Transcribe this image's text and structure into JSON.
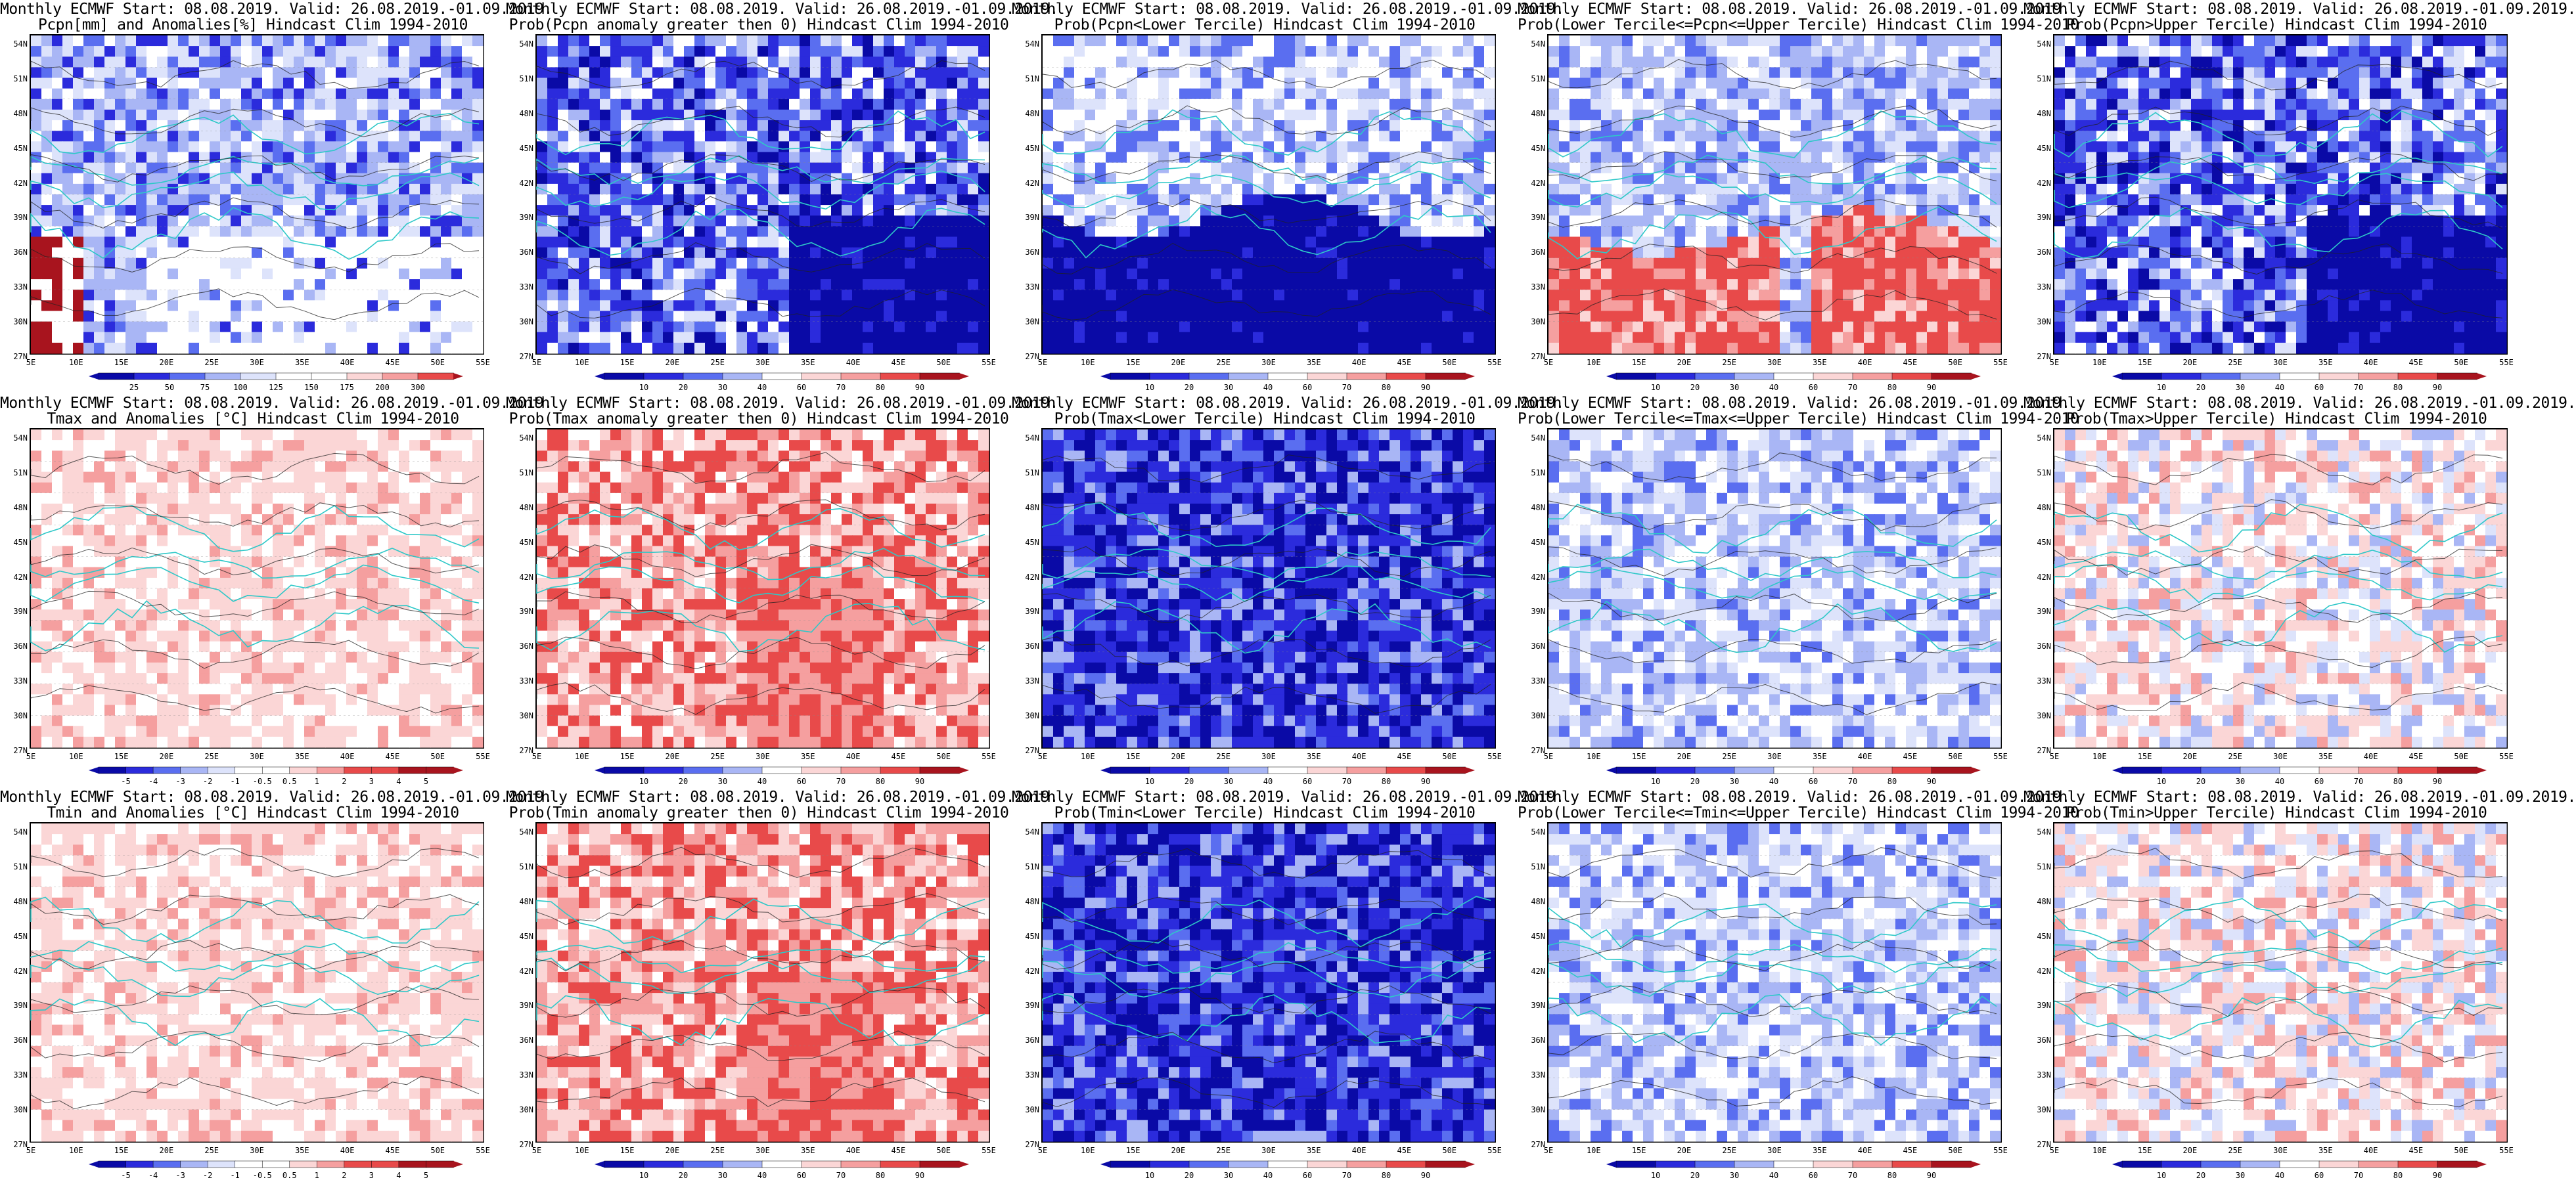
{
  "lon_labels": [
    "5E",
    "10E",
    "15E",
    "20E",
    "25E",
    "30E",
    "35E",
    "40E",
    "45E",
    "50E",
    "55E"
  ],
  "lat_labels": [
    "54N",
    "51N",
    "48N",
    "45N",
    "42N",
    "39N",
    "36N",
    "33N",
    "30N",
    "27N"
  ],
  "colors": {
    "deep_blue": "#0a0aa6",
    "blue": "#2b2bdc",
    "mid_blue": "#5a6ef0",
    "light_blue": "#a9b6f5",
    "pale_blue": "#dde3fb",
    "white": "#ffffff",
    "pale_red": "#fbd6d6",
    "light_red": "#f59f9f",
    "red": "#e84a4a",
    "dark_red": "#a8141e",
    "coast": "#2ec8c8",
    "contour": "#222222"
  },
  "panels": [
    {
      "title1": "Monthly ECMWF Start: 08.08.2019. Valid: 26.08.2019.-01.09.2019.",
      "title2": "Pcpn[mm] and Anomalies[%] Hindcast Clim 1994-2010",
      "style": "pcpn",
      "cbar": [
        "25",
        "50",
        "75",
        "100",
        "125",
        "150",
        "175",
        "200",
        "300"
      ]
    },
    {
      "title1": "Monthly ECMWF Start: 08.08.2019. Valid: 26.08.2019.-01.09.2019.",
      "title2": "Prob(Pcpn anomaly greater then 0) Hindcast Clim 1994-2010",
      "style": "blue",
      "cbar": [
        "10",
        "20",
        "30",
        "40",
        "60",
        "70",
        "80",
        "90"
      ]
    },
    {
      "title1": "Monthly ECMWF Start: 08.08.2019. Valid: 26.08.2019.-01.09.2019.",
      "title2": "Prob(Pcpn<Lower Tercile) Hindcast Clim 1994-2010",
      "style": "deepblue_south",
      "cbar": [
        "10",
        "20",
        "30",
        "40",
        "60",
        "70",
        "80",
        "90"
      ]
    },
    {
      "title1": "Monthly ECMWF Start: 08.08.2019. Valid: 26.08.2019.-01.09.2019.",
      "title2": "Prob(Lower Tercile<=Pcpn<=Upper Tercile) Hindcast Clim 1994-2010",
      "style": "red_south",
      "cbar": [
        "10",
        "20",
        "30",
        "40",
        "60",
        "70",
        "80",
        "90"
      ]
    },
    {
      "title1": "Monthly ECMWF Start: 08.08.2019. Valid: 26.08.2019.-01.09.2019.",
      "title2": "Prob(Pcpn>Upper Tercile) Hindcast Clim 1994-2010",
      "style": "blue",
      "cbar": [
        "10",
        "20",
        "30",
        "40",
        "60",
        "70",
        "80",
        "90"
      ]
    },
    {
      "title1": "Monthly ECMWF Start: 08.08.2019. Valid: 26.08.2019.-01.09.2019.",
      "title2": "Tmax and Anomalies [°C] Hindcast Clim 1994-2010",
      "style": "lightred",
      "cbar": [
        "-5",
        "-4",
        "-3",
        "-2",
        "-1",
        "-0.5",
        "0.5",
        "1",
        "2",
        "3",
        "4",
        "5"
      ]
    },
    {
      "title1": "Monthly ECMWF Start: 08.08.2019. Valid: 26.08.2019.-01.09.2019.",
      "title2": "Prob(Tmax anomaly greater then 0) Hindcast Clim 1994-2010",
      "style": "red",
      "cbar": [
        "10",
        "20",
        "30",
        "40",
        "60",
        "70",
        "80",
        "90"
      ]
    },
    {
      "title1": "Monthly ECMWF Start: 08.08.2019. Valid: 26.08.2019.-01.09.2019.",
      "title2": "Prob(Tmax<Lower Tercile) Hindcast Clim 1994-2010",
      "style": "deepblue",
      "cbar": [
        "10",
        "20",
        "30",
        "40",
        "60",
        "70",
        "80",
        "90"
      ]
    },
    {
      "title1": "Monthly ECMWF Start: 08.08.2019. Valid: 26.08.2019.-01.09.2019.",
      "title2": "Prob(Lower Tercile<=Tmax<=Upper Tercile) Hindcast Clim 1994-2010",
      "style": "paleblue",
      "cbar": [
        "10",
        "20",
        "30",
        "40",
        "60",
        "70",
        "80",
        "90"
      ]
    },
    {
      "title1": "Monthly ECMWF Start: 08.08.2019. Valid: 26.08.2019.-01.09.2019.",
      "title2": "Prob(Tmax>Upper Tercile) Hindcast Clim 1994-2010",
      "style": "mixed",
      "cbar": [
        "10",
        "20",
        "30",
        "40",
        "60",
        "70",
        "80",
        "90"
      ]
    },
    {
      "title1": "Monthly ECMWF Start: 08.08.2019. Valid: 26.08.2019.-01.09.2019.",
      "title2": "Tmin and Anomalies [°C] Hindcast Clim 1994-2010",
      "style": "lightred",
      "cbar": [
        "-5",
        "-4",
        "-3",
        "-2",
        "-1",
        "-0.5",
        "0.5",
        "1",
        "2",
        "3",
        "4",
        "5"
      ]
    },
    {
      "title1": "Monthly ECMWF Start: 08.08.2019. Valid: 26.08.2019.-01.09.2019.",
      "title2": "Prob(Tmin anomaly greater then 0) Hindcast Clim 1994-2010",
      "style": "red",
      "cbar": [
        "10",
        "20",
        "30",
        "40",
        "60",
        "70",
        "80",
        "90"
      ]
    },
    {
      "title1": "Monthly ECMWF Start: 08.08.2019. Valid: 26.08.2019.-01.09.2019.",
      "title2": "Prob(Tmin<Lower Tercile) Hindcast Clim 1994-2010",
      "style": "deepblue",
      "cbar": [
        "10",
        "20",
        "30",
        "40",
        "60",
        "70",
        "80",
        "90"
      ]
    },
    {
      "title1": "Monthly ECMWF Start: 08.08.2019. Valid: 26.08.2019.-01.09.2019.",
      "title2": "Prob(Lower Tercile<=Tmin<=Upper Tercile) Hindcast Clim 1994-2010",
      "style": "paleblue",
      "cbar": [
        "10",
        "20",
        "30",
        "40",
        "60",
        "70",
        "80",
        "90"
      ]
    },
    {
      "title1": "Monthly ECMWF Start: 08.08.2019. Valid: 26.08.2019.-01.09.2019.",
      "title2": "Prob(Tmin>Upper Tercile) Hindcast Clim 1994-2010",
      "style": "mixed",
      "cbar": [
        "10",
        "20",
        "30",
        "40",
        "60",
        "70",
        "80",
        "90"
      ]
    }
  ]
}
